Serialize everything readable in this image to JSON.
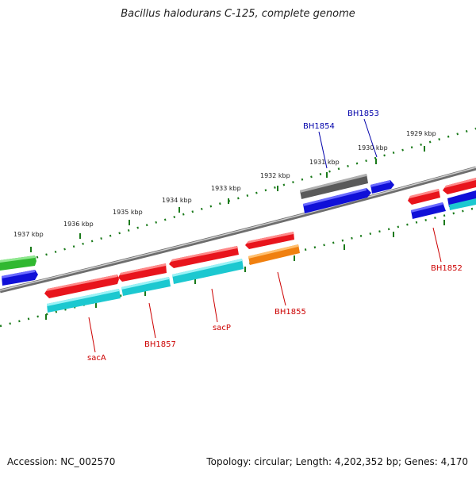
{
  "title": "Bacillus halodurans C-125, complete genome",
  "footer": {
    "accession": "Accession: NC_002570",
    "summary": "Topology: circular; Length: 4,202,352 bp; Genes: 4,170"
  },
  "colors": {
    "red": "#e8141c",
    "blue": "#1010d8",
    "cyan": "#1cc8d0",
    "green": "#30b830",
    "gray": "#5a5a5a",
    "orange": "#f08010",
    "tick": "#1a7a1a",
    "label_red": "#cc0000",
    "label_blue": "#0000aa"
  },
  "scale_ticks": [
    {
      "label": "1937 kbp"
    },
    {
      "label": "1936 kbp"
    },
    {
      "label": "1935 kbp"
    },
    {
      "label": "1934 kbp"
    },
    {
      "label": "1933 kbp"
    },
    {
      "label": "1932 kbp"
    },
    {
      "label": "1931 kbp"
    },
    {
      "label": "1930 kbp"
    },
    {
      "label": "1929 kbp"
    }
  ],
  "gene_labels": [
    {
      "name": "sacA",
      "color": "label_red"
    },
    {
      "name": "BH1857",
      "color": "label_red"
    },
    {
      "name": "sacP",
      "color": "label_red"
    },
    {
      "name": "BH1855",
      "color": "label_red"
    },
    {
      "name": "BH1854",
      "color": "label_blue"
    },
    {
      "name": "BH1853",
      "color": "label_blue"
    },
    {
      "name": "BH1852",
      "color": "label_red"
    }
  ]
}
